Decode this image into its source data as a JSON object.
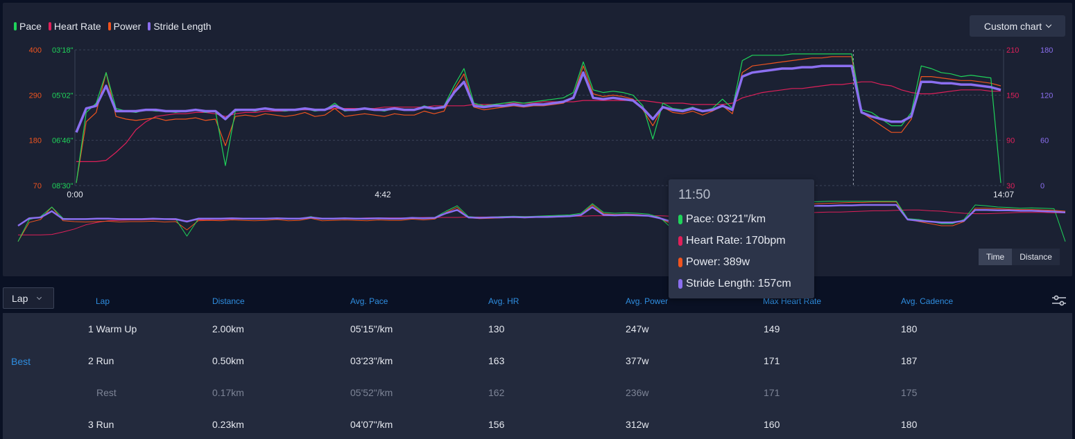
{
  "legend": {
    "items": [
      {
        "label": "Pace",
        "color": "#1fd45a"
      },
      {
        "label": "Heart Rate",
        "color": "#e0205a"
      },
      {
        "label": "Power",
        "color": "#f0541f"
      },
      {
        "label": "Stride Length",
        "color": "#8b6ff0"
      }
    ]
  },
  "custom_chart_label": "Custom chart",
  "axes": {
    "power_ticks": [
      "400",
      "290",
      "180",
      "70"
    ],
    "pace_ticks": [
      "03'18\"",
      "05'02\"",
      "06'46\"",
      "08'30\""
    ],
    "hr_ticks": [
      "210",
      "150",
      "90",
      "30"
    ],
    "stride_ticks": [
      "180",
      "120",
      "60",
      "0"
    ],
    "x_ticks": [
      "0:00",
      "4:42",
      "14:07"
    ]
  },
  "toggle": {
    "time_label": "Time",
    "distance_label": "Distance"
  },
  "tooltip": {
    "time": "11:50",
    "rows": [
      {
        "label": "Pace:",
        "value": "03'21\"/km"
      },
      {
        "label": "Heart Rate:",
        "value": "170bpm"
      },
      {
        "label": "Power:",
        "value": "389w"
      },
      {
        "label": "Stride Length:",
        "value": "157cm"
      }
    ]
  },
  "table": {
    "select_label": "Lap",
    "headers": [
      "Lap",
      "Distance",
      "Avg. Pace",
      "Avg. HR",
      "Avg. Power",
      "Max Heart Rate",
      "Avg. Cadence"
    ],
    "best_label": "Best",
    "rows": [
      {
        "lap": "1 Warm Up",
        "distance": "2.00km",
        "pace": "05'15\"/km",
        "hr": "130",
        "power": "247w",
        "max_hr": "149",
        "cadence": "180",
        "rest": false
      },
      {
        "lap": "2 Run",
        "distance": "0.50km",
        "pace": "03'23\"/km",
        "hr": "163",
        "power": "377w",
        "max_hr": "171",
        "cadence": "187",
        "rest": false
      },
      {
        "lap": "Rest",
        "distance": "0.17km",
        "pace": "05'52\"/km",
        "hr": "162",
        "power": "236w",
        "max_hr": "171",
        "cadence": "175",
        "rest": true
      },
      {
        "lap": "3 Run",
        "distance": "0.23km",
        "pace": "04'07\"/km",
        "hr": "156",
        "power": "312w",
        "max_hr": "160",
        "cadence": "180",
        "rest": false
      }
    ]
  },
  "chart_data": {
    "type": "line",
    "x_range": [
      "0:00",
      "14:07"
    ],
    "cursor_time": "11:50",
    "axes": {
      "power": {
        "unit": "w",
        "range": [
          70,
          400
        ]
      },
      "pace": {
        "unit": "/km",
        "range": [
          "08'30\"",
          "03'18\""
        ]
      },
      "heart_rate": {
        "unit": "bpm",
        "range": [
          30,
          210
        ]
      },
      "stride_length": {
        "unit": "cm",
        "range": [
          0,
          180
        ]
      }
    },
    "series": [
      {
        "name": "Pace",
        "axis_range": [
          0,
          1
        ],
        "values": [
          0.02,
          0.55,
          0.62,
          0.85,
          0.58,
          0.56,
          0.55,
          0.57,
          0.56,
          0.56,
          0.55,
          0.56,
          0.57,
          0.55,
          0.56,
          0.15,
          0.56,
          0.57,
          0.56,
          0.58,
          0.57,
          0.56,
          0.57,
          0.58,
          0.56,
          0.57,
          0.62,
          0.56,
          0.57,
          0.58,
          0.57,
          0.56,
          0.58,
          0.57,
          0.57,
          0.6,
          0.58,
          0.6,
          0.75,
          0.88,
          0.62,
          0.6,
          0.61,
          0.62,
          0.63,
          0.62,
          0.63,
          0.64,
          0.65,
          0.66,
          0.7,
          0.93,
          0.72,
          0.7,
          0.71,
          0.7,
          0.68,
          0.6,
          0.35,
          0.62,
          0.58,
          0.57,
          0.59,
          0.56,
          0.58,
          0.65,
          0.58,
          0.94,
          0.98,
          0.98,
          0.98,
          0.98,
          0.99,
          0.99,
          0.99,
          0.99,
          0.99,
          0.99,
          0.99,
          0.57,
          0.55,
          0.5,
          0.45,
          0.45,
          0.55,
          0.9,
          0.88,
          0.85,
          0.84,
          0.82,
          0.83,
          0.82,
          0.81,
          0.02
        ]
      },
      {
        "name": "Heart Rate",
        "axis_range": [
          0,
          1
        ],
        "values": [
          0.18,
          0.18,
          0.18,
          0.19,
          0.25,
          0.32,
          0.42,
          0.48,
          0.52,
          0.53,
          0.54,
          0.54,
          0.55,
          0.55,
          0.54,
          0.52,
          0.54,
          0.55,
          0.55,
          0.56,
          0.56,
          0.56,
          0.57,
          0.57,
          0.57,
          0.57,
          0.58,
          0.58,
          0.58,
          0.58,
          0.58,
          0.59,
          0.59,
          0.59,
          0.59,
          0.59,
          0.6,
          0.6,
          0.6,
          0.6,
          0.61,
          0.61,
          0.61,
          0.62,
          0.62,
          0.62,
          0.62,
          0.63,
          0.63,
          0.63,
          0.63,
          0.64,
          0.64,
          0.64,
          0.64,
          0.64,
          0.64,
          0.64,
          0.63,
          0.62,
          0.62,
          0.62,
          0.61,
          0.61,
          0.61,
          0.61,
          0.62,
          0.66,
          0.68,
          0.7,
          0.71,
          0.72,
          0.73,
          0.73,
          0.74,
          0.75,
          0.76,
          0.76,
          0.77,
          0.78,
          0.78,
          0.76,
          0.75,
          0.72,
          0.7,
          0.69,
          0.69,
          0.7,
          0.71,
          0.72,
          0.72,
          0.72,
          0.71,
          0.71
        ]
      },
      {
        "name": "Power",
        "axis_range": [
          0,
          1
        ],
        "values": [
          0.02,
          0.48,
          0.55,
          0.85,
          0.52,
          0.5,
          0.49,
          0.5,
          0.51,
          0.49,
          0.5,
          0.5,
          0.51,
          0.49,
          0.5,
          0.3,
          0.52,
          0.53,
          0.52,
          0.54,
          0.53,
          0.52,
          0.53,
          0.55,
          0.52,
          0.53,
          0.58,
          0.52,
          0.53,
          0.54,
          0.53,
          0.52,
          0.54,
          0.53,
          0.53,
          0.56,
          0.54,
          0.56,
          0.72,
          0.84,
          0.59,
          0.57,
          0.58,
          0.59,
          0.6,
          0.59,
          0.6,
          0.6,
          0.61,
          0.62,
          0.67,
          0.9,
          0.69,
          0.67,
          0.68,
          0.67,
          0.65,
          0.57,
          0.45,
          0.59,
          0.55,
          0.54,
          0.56,
          0.53,
          0.56,
          0.6,
          0.54,
          0.85,
          0.9,
          0.91,
          0.92,
          0.93,
          0.94,
          0.95,
          0.96,
          0.96,
          0.97,
          0.97,
          0.97,
          0.55,
          0.5,
          0.45,
          0.4,
          0.4,
          0.5,
          0.82,
          0.82,
          0.81,
          0.8,
          0.79,
          0.79,
          0.78,
          0.77,
          0.75
        ]
      },
      {
        "name": "Stride Length",
        "axis_range": [
          0,
          1
        ],
        "values": [
          0.4,
          0.58,
          0.6,
          0.75,
          0.56,
          0.56,
          0.56,
          0.57,
          0.57,
          0.56,
          0.56,
          0.56,
          0.57,
          0.56,
          0.56,
          0.5,
          0.57,
          0.57,
          0.57,
          0.58,
          0.57,
          0.57,
          0.57,
          0.58,
          0.57,
          0.57,
          0.6,
          0.57,
          0.57,
          0.58,
          0.57,
          0.57,
          0.58,
          0.57,
          0.57,
          0.59,
          0.58,
          0.59,
          0.7,
          0.78,
          0.6,
          0.59,
          0.6,
          0.6,
          0.61,
          0.6,
          0.61,
          0.61,
          0.62,
          0.63,
          0.66,
          0.85,
          0.66,
          0.65,
          0.66,
          0.65,
          0.64,
          0.58,
          0.5,
          0.59,
          0.57,
          0.56,
          0.58,
          0.56,
          0.57,
          0.6,
          0.57,
          0.82,
          0.85,
          0.86,
          0.87,
          0.88,
          0.88,
          0.89,
          0.89,
          0.9,
          0.9,
          0.9,
          0.9,
          0.55,
          0.52,
          0.5,
          0.48,
          0.48,
          0.52,
          0.78,
          0.78,
          0.77,
          0.77,
          0.76,
          0.76,
          0.75,
          0.74,
          0.72
        ]
      }
    ]
  }
}
